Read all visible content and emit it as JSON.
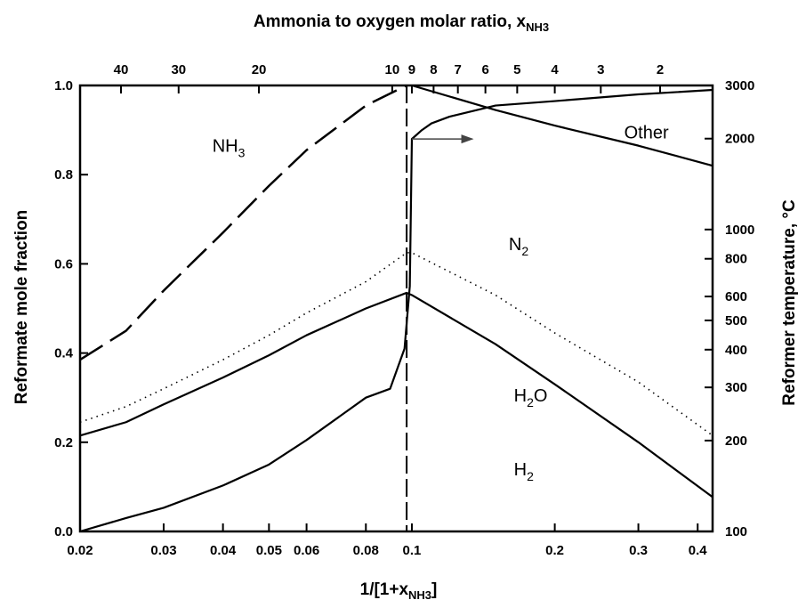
{
  "chart_data": {
    "type": "line",
    "title": "",
    "xlabel_bottom": {
      "main": "1/[1+x",
      "sub": "NH3",
      "tail": "]"
    },
    "xlabel_top": {
      "main": "Ammonia to oxygen molar ratio,  x",
      "sub": "NH3"
    },
    "ylabel_left": "Reformate mole fraction",
    "ylabel_right": "Reformer temperature, °C",
    "x_scale": "log",
    "xlim": [
      0.02,
      0.43
    ],
    "ylim": [
      0,
      1
    ],
    "y_right_scale": "log",
    "y_right_lim": [
      100,
      3000
    ],
    "x_ticks": [
      0.02,
      0.03,
      0.04,
      0.05,
      0.06,
      0.08,
      0.1,
      0.2,
      0.3,
      0.4
    ],
    "x_tick_labels": [
      "0.02",
      "0.03",
      "0.04",
      "0.05",
      "0.06",
      "0.08",
      "0.1",
      "0.2",
      "0.3",
      "0.4"
    ],
    "y_ticks": [
      0,
      0.2,
      0.4,
      0.6,
      0.8,
      1.0
    ],
    "y_tick_labels": [
      "0.0",
      "0.2",
      "0.4",
      "0.6",
      "0.8",
      "1.0"
    ],
    "top_ticks": [
      40,
      30,
      20,
      10,
      9,
      8,
      7,
      6,
      5,
      4,
      3,
      2
    ],
    "top_tick_labels": [
      "40",
      "30",
      "20",
      "10",
      "9",
      "8",
      "7",
      "6",
      "5",
      "4",
      "3",
      "2"
    ],
    "right_ticks": [
      100,
      200,
      300,
      400,
      500,
      600,
      800,
      1000,
      2000,
      3000
    ],
    "right_tick_labels": [
      "100",
      "200",
      "300",
      "400",
      "500",
      "600",
      "800",
      "1000",
      "2000",
      "3000"
    ],
    "grid": false,
    "stoichiometric_x": 0.0975,
    "series": [
      {
        "key": "nh3",
        "style": "long-dash",
        "points": [
          [
            0.02,
            0.385
          ],
          [
            0.025,
            0.45
          ],
          [
            0.03,
            0.54
          ],
          [
            0.04,
            0.67
          ],
          [
            0.05,
            0.775
          ],
          [
            0.06,
            0.855
          ],
          [
            0.08,
            0.955
          ],
          [
            0.0975,
            1.0
          ]
        ]
      },
      {
        "key": "temp",
        "style": "solid",
        "axis": "right",
        "points": [
          [
            0.02,
            0.0
          ],
          [
            0.025,
            0.03
          ],
          [
            0.03,
            0.053
          ],
          [
            0.04,
            0.103
          ],
          [
            0.05,
            0.15
          ],
          [
            0.06,
            0.205
          ],
          [
            0.08,
            0.3
          ],
          [
            0.09,
            0.32
          ],
          [
            0.0965,
            0.41
          ],
          [
            0.099,
            0.55
          ],
          [
            0.1,
            0.88
          ],
          [
            0.105,
            0.9
          ],
          [
            0.11,
            0.915
          ],
          [
            0.12,
            0.93
          ],
          [
            0.15,
            0.955
          ],
          [
            0.2,
            0.965
          ],
          [
            0.3,
            0.98
          ],
          [
            0.43,
            0.99
          ]
        ]
      },
      {
        "key": "h2o",
        "style": "dotted",
        "points": [
          [
            0.02,
            0.245
          ],
          [
            0.025,
            0.28
          ],
          [
            0.03,
            0.32
          ],
          [
            0.04,
            0.385
          ],
          [
            0.05,
            0.44
          ],
          [
            0.06,
            0.49
          ],
          [
            0.08,
            0.56
          ],
          [
            0.0975,
            0.625
          ],
          [
            0.1,
            0.625
          ],
          [
            0.15,
            0.53
          ],
          [
            0.2,
            0.445
          ],
          [
            0.3,
            0.335
          ],
          [
            0.43,
            0.215
          ]
        ]
      },
      {
        "key": "h2",
        "style": "solid",
        "points": [
          [
            0.02,
            0.215
          ],
          [
            0.025,
            0.245
          ],
          [
            0.03,
            0.285
          ],
          [
            0.04,
            0.345
          ],
          [
            0.05,
            0.395
          ],
          [
            0.06,
            0.44
          ],
          [
            0.08,
            0.5
          ],
          [
            0.0975,
            0.535
          ],
          [
            0.1,
            0.53
          ],
          [
            0.15,
            0.42
          ],
          [
            0.2,
            0.33
          ],
          [
            0.3,
            0.2
          ],
          [
            0.43,
            0.077
          ]
        ]
      },
      {
        "key": "other",
        "style": "solid",
        "points": [
          [
            0.1,
            1.0
          ],
          [
            0.15,
            0.945
          ],
          [
            0.2,
            0.91
          ],
          [
            0.3,
            0.865
          ],
          [
            0.43,
            0.82
          ]
        ]
      }
    ],
    "labels": [
      {
        "key": "nh3",
        "text": "NH",
        "sub": "3",
        "x": 0.038,
        "y": 0.865
      },
      {
        "key": "other",
        "text": "Other",
        "x": 0.28,
        "y": 0.895
      },
      {
        "key": "n2",
        "text": "N",
        "sub": "2",
        "x": 0.16,
        "y": 0.645
      },
      {
        "key": "h2o",
        "text": "H",
        "sub": "2",
        "tail": "O",
        "x": 0.164,
        "y": 0.305
      },
      {
        "key": "h2",
        "text": "H",
        "sub": "2",
        "x": 0.164,
        "y": 0.14
      }
    ],
    "arrow": {
      "from": [
        0.1,
        0.88
      ],
      "to": [
        0.135,
        0.88
      ]
    }
  }
}
